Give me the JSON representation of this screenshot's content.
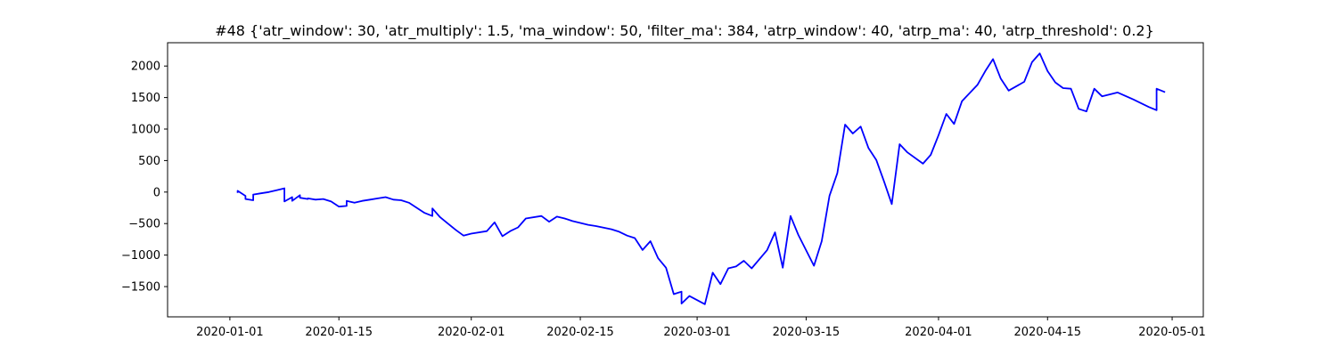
{
  "chart_data": {
    "type": "line",
    "title": "#48 {'atr_window': 30, 'atr_multiply': 1.5, 'ma_window': 50, 'filter_ma': 384, 'atrp_window': 40, 'atrp_ma': 40, 'atrp_threshold': 0.2}",
    "xlabel": "",
    "ylabel": "",
    "xlim": [
      "2019-12-24",
      "2020-05-05"
    ],
    "ylim": [
      -1980,
      2370
    ],
    "grid": false,
    "legend": "none",
    "line_color": "#0000ff",
    "x_ticks": [
      "2020-01-01",
      "2020-01-15",
      "2020-02-01",
      "2020-02-15",
      "2020-03-01",
      "2020-03-15",
      "2020-04-01",
      "2020-04-15",
      "2020-05-01"
    ],
    "y_ticks": [
      -1500,
      -1000,
      -500,
      0,
      500,
      1000,
      1500,
      2000
    ],
    "series": [
      {
        "name": "",
        "x": [
          "2020-01-02",
          "2020-01-02",
          "2020-01-03",
          "2020-01-03",
          "2020-01-04",
          "2020-01-04",
          "2020-01-05",
          "2020-01-06",
          "2020-01-07",
          "2020-01-08",
          "2020-01-08",
          "2020-01-09",
          "2020-01-09",
          "2020-01-10",
          "2020-01-10",
          "2020-01-11",
          "2020-01-11",
          "2020-01-12",
          "2020-01-13",
          "2020-01-14",
          "2020-01-15",
          "2020-01-16",
          "2020-01-16",
          "2020-01-17",
          "2020-01-18",
          "2020-01-19",
          "2020-01-20",
          "2020-01-21",
          "2020-01-22",
          "2020-01-23",
          "2020-01-24",
          "2020-01-26",
          "2020-01-27",
          "2020-01-27",
          "2020-01-28",
          "2020-01-29",
          "2020-01-30",
          "2020-01-31",
          "2020-02-01",
          "2020-02-03",
          "2020-02-04",
          "2020-02-05",
          "2020-02-06",
          "2020-02-07",
          "2020-02-08",
          "2020-02-10",
          "2020-02-11",
          "2020-02-12",
          "2020-02-13",
          "2020-02-14",
          "2020-02-15",
          "2020-02-16",
          "2020-02-17",
          "2020-02-19",
          "2020-02-20",
          "2020-02-21",
          "2020-02-22",
          "2020-02-23",
          "2020-02-24",
          "2020-02-25",
          "2020-02-26",
          "2020-02-27",
          "2020-02-28",
          "2020-02-28",
          "2020-02-29",
          "2020-03-02",
          "2020-03-03",
          "2020-03-04",
          "2020-03-05",
          "2020-03-06",
          "2020-03-07",
          "2020-03-08",
          "2020-03-10",
          "2020-03-11",
          "2020-03-12",
          "2020-03-13",
          "2020-03-14",
          "2020-03-16",
          "2020-03-17",
          "2020-03-18",
          "2020-03-19",
          "2020-03-20",
          "2020-03-21",
          "2020-03-22",
          "2020-03-23",
          "2020-03-24",
          "2020-03-25",
          "2020-03-26",
          "2020-03-27",
          "2020-03-28",
          "2020-03-30",
          "2020-03-31",
          "2020-04-01",
          "2020-04-02",
          "2020-04-03",
          "2020-04-04",
          "2020-04-06",
          "2020-04-07",
          "2020-04-08",
          "2020-04-09",
          "2020-04-10",
          "2020-04-12",
          "2020-04-13",
          "2020-04-14",
          "2020-04-15",
          "2020-04-16",
          "2020-04-17",
          "2020-04-18",
          "2020-04-19",
          "2020-04-20",
          "2020-04-21",
          "2020-04-22",
          "2020-04-24",
          "2020-04-26",
          "2020-04-28",
          "2020-04-29",
          "2020-04-29",
          "2020-04-30"
        ],
        "y": [
          0,
          20,
          -60,
          -110,
          -130,
          -40,
          -20,
          0,
          30,
          60,
          -150,
          -80,
          -140,
          -50,
          -90,
          -110,
          -100,
          -120,
          -110,
          -150,
          -230,
          -220,
          -140,
          -170,
          -140,
          -120,
          -100,
          -80,
          -120,
          -130,
          -170,
          -330,
          -380,
          -260,
          -400,
          -500,
          -600,
          -690,
          -660,
          -620,
          -480,
          -700,
          -620,
          -560,
          -420,
          -380,
          -470,
          -390,
          -420,
          -460,
          -490,
          -520,
          -540,
          -590,
          -630,
          -690,
          -730,
          -920,
          -780,
          -1050,
          -1200,
          -1620,
          -1580,
          -1770,
          -1650,
          -1780,
          -1280,
          -1460,
          -1210,
          -1180,
          -1090,
          -1210,
          -920,
          -640,
          -1200,
          -380,
          -680,
          -1170,
          -780,
          -60,
          300,
          1070,
          930,
          1040,
          700,
          510,
          170,
          -190,
          760,
          630,
          450,
          590,
          900,
          1240,
          1080,
          1440,
          1700,
          1920,
          2110,
          1800,
          1610,
          1750,
          2060,
          2200,
          1920,
          1740,
          1650,
          1640,
          1320,
          1280,
          1640,
          1520,
          1580,
          1470,
          1350,
          1300,
          1640,
          1590
        ]
      }
    ]
  }
}
